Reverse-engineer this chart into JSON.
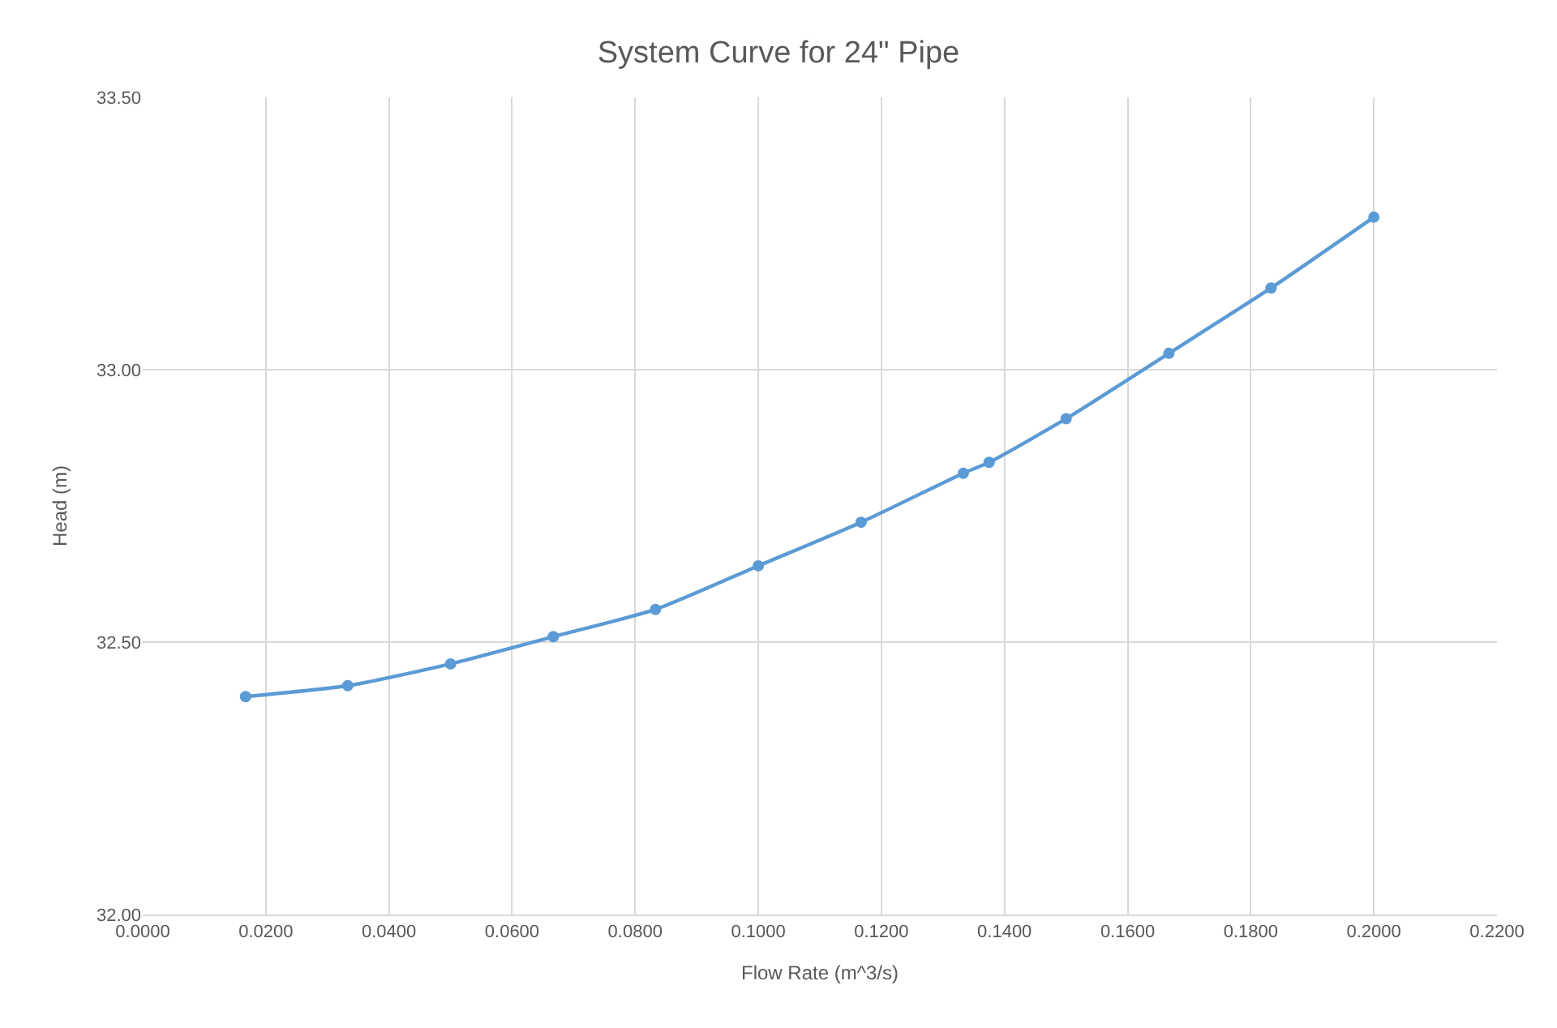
{
  "chart_data": {
    "type": "line",
    "title": "System Curve for 24\" Pipe",
    "xlabel": "Flow Rate (m^3/s)",
    "ylabel": "Head (m)",
    "x": [
      0.0167,
      0.0333,
      0.05,
      0.0667,
      0.0833,
      0.1,
      0.1167,
      0.1333,
      0.1375,
      0.15,
      0.1667,
      0.1833,
      0.2
    ],
    "series": [
      {
        "color": "#5b9bd5",
        "values": [
          32.4,
          32.42,
          32.46,
          32.51,
          32.56,
          32.64,
          32.72,
          32.81,
          32.83,
          32.91,
          33.03,
          33.15,
          33.28
        ]
      }
    ],
    "xlim": [
      0,
      0.22
    ],
    "xticks": [
      {
        "value": 0,
        "label": "0.0000"
      },
      {
        "value": 0.02,
        "label": "0.0200"
      },
      {
        "value": 0.04,
        "label": "0.0400"
      },
      {
        "value": 0.06,
        "label": "0.0600"
      },
      {
        "value": 0.08,
        "label": "0.0800"
      },
      {
        "value": 0.1,
        "label": "0.1000"
      },
      {
        "value": 0.12,
        "label": "0.1200"
      },
      {
        "value": 0.14,
        "label": "0.1400"
      },
      {
        "value": 0.16,
        "label": "0.1600"
      },
      {
        "value": 0.18,
        "label": "0.1800"
      },
      {
        "value": 0.2,
        "label": "0.2000"
      },
      {
        "value": 0.22,
        "label": "0.2200"
      }
    ],
    "ylim": [
      32,
      33.5
    ],
    "yticks": [
      {
        "value": 32,
        "label": "32.00"
      },
      {
        "value": 32.5,
        "label": "32.50"
      },
      {
        "value": 33,
        "label": "33.00"
      },
      {
        "value": 33.5,
        "label": "33.50"
      }
    ],
    "grid": true,
    "marker": "circle",
    "line_style": "solid"
  }
}
